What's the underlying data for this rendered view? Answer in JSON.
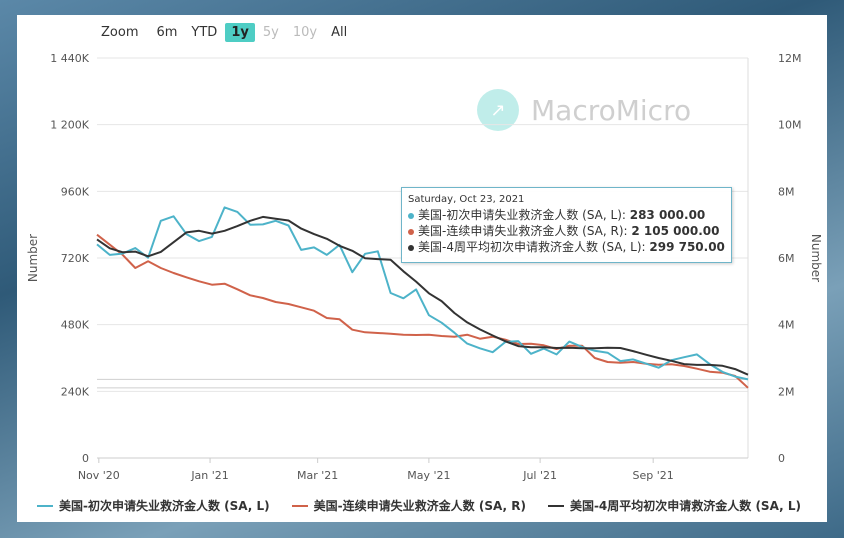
{
  "toolbar": {
    "zoom_label": "Zoom",
    "ranges": [
      {
        "label": "6m",
        "state": "normal"
      },
      {
        "label": "YTD",
        "state": "normal"
      },
      {
        "label": "1y",
        "state": "active"
      },
      {
        "label": "5y",
        "state": "disabled"
      },
      {
        "label": "10y",
        "state": "disabled"
      },
      {
        "label": "All",
        "state": "normal"
      }
    ]
  },
  "watermark": {
    "text": "MacroMicro"
  },
  "tooltip": {
    "date": "Saturday, Oct 23, 2021",
    "rows": [
      {
        "label": "美国-初次申请失业救济金人数 (SA, L): ",
        "value": "283 000.00",
        "color": "#4db3c9"
      },
      {
        "label": "美国-连续申请失业救济金人数 (SA, R): ",
        "value": "2 105 000.00",
        "color": "#d0624a"
      },
      {
        "label": "美国-4周平均初次申请救济金人数 (SA, L): ",
        "value": "299 750.00",
        "color": "#333333"
      }
    ]
  },
  "chart_data": {
    "type": "line",
    "xlabel": "",
    "ylabel_left": "Number",
    "ylabel_right": "Number",
    "x_ticks": [
      "Nov '20",
      "Jan '21",
      "Mar '21",
      "May '21",
      "Jul '21",
      "Sep '21"
    ],
    "y_left_ticks": [
      "0",
      "240K",
      "480K",
      "720K",
      "960K",
      "1 200K",
      "1 440K"
    ],
    "y_right_ticks": [
      "0",
      "2M",
      "4M",
      "6M",
      "8M",
      "10M",
      "12M"
    ],
    "ylim_left": [
      0,
      1440000
    ],
    "ylim_right": [
      0,
      12000000
    ],
    "xlim": [
      "2020-10-31",
      "2021-10-23"
    ],
    "series": [
      {
        "name": "美国-初次申请失业救济金人数 (SA, L)",
        "axis": "left",
        "color": "#4db3c9",
        "x": [
          "2020-10-31",
          "2020-11-07",
          "2020-11-14",
          "2020-11-21",
          "2020-11-28",
          "2020-12-05",
          "2020-12-12",
          "2020-12-19",
          "2020-12-26",
          "2021-01-02",
          "2021-01-09",
          "2021-01-16",
          "2021-01-23",
          "2021-01-30",
          "2021-02-06",
          "2021-02-13",
          "2021-02-20",
          "2021-02-27",
          "2021-03-06",
          "2021-03-13",
          "2021-03-20",
          "2021-03-27",
          "2021-04-03",
          "2021-04-10",
          "2021-04-17",
          "2021-04-24",
          "2021-05-01",
          "2021-05-08",
          "2021-05-15",
          "2021-05-22",
          "2021-05-29",
          "2021-06-05",
          "2021-06-12",
          "2021-06-19",
          "2021-06-26",
          "2021-07-03",
          "2021-07-10",
          "2021-07-17",
          "2021-07-24",
          "2021-07-31",
          "2021-08-07",
          "2021-08-14",
          "2021-08-21",
          "2021-08-28",
          "2021-09-04",
          "2021-09-11",
          "2021-09-18",
          "2021-09-25",
          "2021-10-02",
          "2021-10-09",
          "2021-10-16",
          "2021-10-23"
        ],
        "values": [
          769000,
          731000,
          736000,
          756000,
          721000,
          854000,
          870000,
          806000,
          781000,
          796000,
          902000,
          886000,
          840000,
          841000,
          854000,
          837000,
          749000,
          758000,
          731000,
          767000,
          669000,
          735000,
          744000,
          594000,
          575000,
          607000,
          514000,
          487000,
          451000,
          412000,
          395000,
          381000,
          418000,
          421000,
          375000,
          394000,
          373000,
          419000,
          400000,
          386000,
          379000,
          349000,
          355000,
          340000,
          325000,
          352000,
          363000,
          373000,
          338000,
          310000,
          293000,
          283000
        ]
      },
      {
        "name": "美国-连续申请失业救济金人数 (SA, R)",
        "axis": "right",
        "color": "#d0624a",
        "x": [
          "2020-10-31",
          "2020-11-07",
          "2020-11-14",
          "2020-11-21",
          "2020-11-28",
          "2020-12-05",
          "2020-12-12",
          "2020-12-19",
          "2020-12-26",
          "2021-01-02",
          "2021-01-09",
          "2021-01-16",
          "2021-01-23",
          "2021-01-30",
          "2021-02-06",
          "2021-02-13",
          "2021-02-20",
          "2021-02-27",
          "2021-03-06",
          "2021-03-13",
          "2021-03-20",
          "2021-03-27",
          "2021-04-03",
          "2021-04-10",
          "2021-04-17",
          "2021-04-24",
          "2021-05-01",
          "2021-05-08",
          "2021-05-15",
          "2021-05-22",
          "2021-05-29",
          "2021-06-05",
          "2021-06-12",
          "2021-06-19",
          "2021-06-26",
          "2021-07-03",
          "2021-07-10",
          "2021-07-17",
          "2021-07-24",
          "2021-07-31",
          "2021-08-07",
          "2021-08-14",
          "2021-08-21",
          "2021-08-28",
          "2021-09-04",
          "2021-09-11",
          "2021-09-18",
          "2021-09-25",
          "2021-10-02",
          "2021-10-09",
          "2021-10-16",
          "2021-10-23"
        ],
        "values": [
          6700000,
          6400000,
          6100000,
          5700000,
          5900000,
          5700000,
          5550000,
          5420000,
          5300000,
          5200000,
          5230000,
          5060000,
          4880000,
          4800000,
          4680000,
          4620000,
          4520000,
          4420000,
          4200000,
          4160000,
          3850000,
          3770000,
          3750000,
          3730000,
          3700000,
          3690000,
          3700000,
          3660000,
          3640000,
          3700000,
          3580000,
          3640000,
          3550000,
          3420000,
          3430000,
          3380000,
          3270000,
          3370000,
          3370000,
          3000000,
          2880000,
          2860000,
          2880000,
          2830000,
          2800000,
          2810000,
          2760000,
          2680000,
          2590000,
          2560000,
          2460000,
          2105000
        ]
      },
      {
        "name": "美国-4周平均初次申请救济金人数 (SA, L)",
        "axis": "left",
        "color": "#333333",
        "x": [
          "2020-10-31",
          "2020-11-07",
          "2020-11-14",
          "2020-11-21",
          "2020-11-28",
          "2020-12-05",
          "2020-12-12",
          "2020-12-19",
          "2020-12-26",
          "2021-01-02",
          "2021-01-09",
          "2021-01-16",
          "2021-01-23",
          "2021-01-30",
          "2021-02-06",
          "2021-02-13",
          "2021-02-20",
          "2021-02-27",
          "2021-03-06",
          "2021-03-13",
          "2021-03-20",
          "2021-03-27",
          "2021-04-03",
          "2021-04-10",
          "2021-04-17",
          "2021-04-24",
          "2021-05-01",
          "2021-05-08",
          "2021-05-15",
          "2021-05-22",
          "2021-05-29",
          "2021-06-05",
          "2021-06-12",
          "2021-06-19",
          "2021-06-26",
          "2021-07-03",
          "2021-07-10",
          "2021-07-17",
          "2021-07-24",
          "2021-07-31",
          "2021-08-07",
          "2021-08-14",
          "2021-08-21",
          "2021-08-28",
          "2021-09-04",
          "2021-09-11",
          "2021-09-18",
          "2021-09-25",
          "2021-10-02",
          "2021-10-09",
          "2021-10-16",
          "2021-10-23"
        ],
        "values": [
          787000,
          755000,
          741000,
          743000,
          726000,
          742000,
          777000,
          812000,
          818000,
          808000,
          818000,
          835000,
          854000,
          868000,
          861000,
          855000,
          826000,
          806000,
          789000,
          764000,
          746000,
          719000,
          716000,
          714000,
          672000,
          635000,
          593000,
          565000,
          522000,
          488000,
          463000,
          441000,
          420000,
          403000,
          399000,
          399000,
          396000,
          397000,
          395000,
          395000,
          397000,
          396000,
          385000,
          372000,
          360000,
          350000,
          338000,
          335000,
          335000,
          332000,
          320000,
          299750
        ]
      }
    ]
  }
}
